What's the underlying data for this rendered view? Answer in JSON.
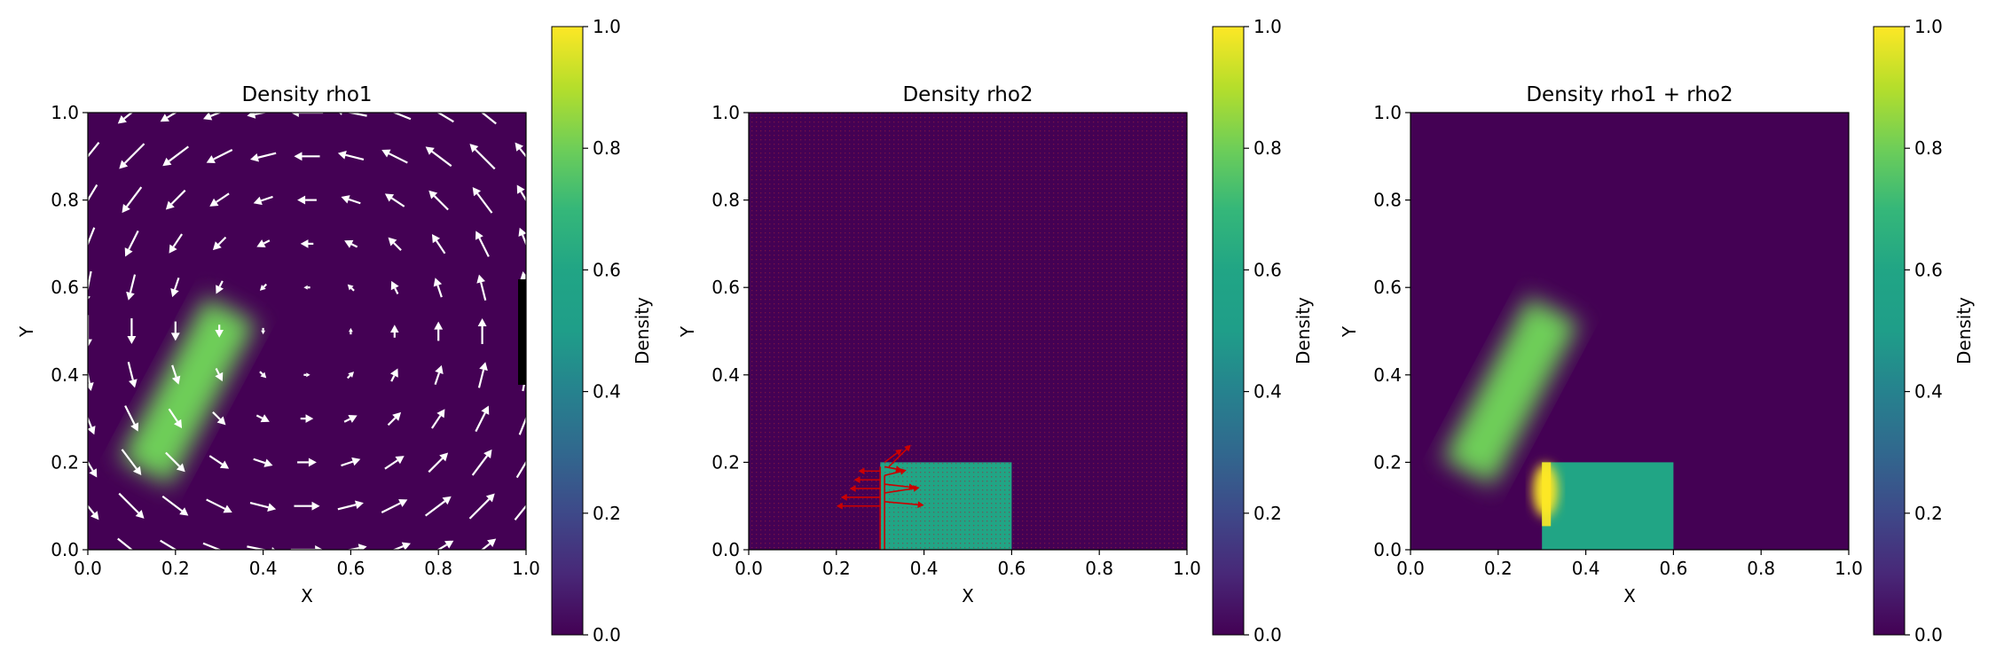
{
  "chart_data": [
    {
      "type": "heatmap",
      "title": "Density rho1",
      "xlabel": "X",
      "ylabel": "Y",
      "xlim": [
        0.0,
        1.0
      ],
      "ylim": [
        0.0,
        1.0
      ],
      "xticks": [
        "0.0",
        "0.2",
        "0.4",
        "0.6",
        "0.8",
        "1.0"
      ],
      "yticks": [
        "0.0",
        "0.2",
        "0.4",
        "0.6",
        "0.8",
        "1.0"
      ],
      "colorbar": {
        "label": "Density",
        "range": [
          0.0,
          1.0
        ],
        "ticks": [
          "0.0",
          "0.2",
          "0.4",
          "0.6",
          "0.8",
          "1.0"
        ],
        "colormap": "viridis"
      },
      "background_density": 0.0,
      "blobs": [
        {
          "shape": "tilted-rectangle",
          "density": 0.8,
          "center": [
            0.19,
            0.29
          ],
          "half_length": 0.21,
          "half_width": 0.065,
          "angle_deg": 62,
          "edge_blur": 0.035
        }
      ],
      "boundary_marker": {
        "x": 1.0,
        "y_range": [
          0.38,
          0.62
        ],
        "color": "#000000"
      },
      "vector_field": {
        "type": "vortex",
        "center": [
          0.5,
          0.5
        ],
        "rotation": "counter-clockwise",
        "color": "#ffffff",
        "grid": [
          0.0,
          0.1,
          0.2,
          0.3,
          0.4,
          0.5,
          0.6,
          0.7,
          0.8,
          0.9,
          1.0
        ]
      }
    },
    {
      "type": "heatmap",
      "title": "Density rho2",
      "xlabel": "X",
      "ylabel": "Y",
      "xlim": [
        0.0,
        1.0
      ],
      "ylim": [
        0.0,
        1.0
      ],
      "xticks": [
        "0.0",
        "0.2",
        "0.4",
        "0.6",
        "0.8",
        "1.0"
      ],
      "yticks": [
        "0.0",
        "0.2",
        "0.4",
        "0.6",
        "0.8",
        "1.0"
      ],
      "colorbar": {
        "label": "Density",
        "range": [
          0.0,
          1.0
        ],
        "ticks": [
          "0.0",
          "0.2",
          "0.4",
          "0.6",
          "0.8",
          "1.0"
        ],
        "colormap": "viridis"
      },
      "background_density": 0.0,
      "rectangles": [
        {
          "x_range": [
            0.3,
            0.6
          ],
          "y_range": [
            0.0,
            0.2
          ],
          "density": 0.6
        }
      ],
      "vector_field": {
        "type": "local-arrows",
        "color": "#cc0000",
        "region_x": [
          0.19,
          0.4
        ],
        "region_y": [
          0.0,
          0.24
        ]
      }
    },
    {
      "type": "heatmap",
      "title": "Density rho1 + rho2",
      "xlabel": "X",
      "ylabel": "Y",
      "xlim": [
        0.0,
        1.0
      ],
      "ylim": [
        0.0,
        1.0
      ],
      "xticks": [
        "0.0",
        "0.2",
        "0.4",
        "0.6",
        "0.8",
        "1.0"
      ],
      "yticks": [
        "0.0",
        "0.2",
        "0.4",
        "0.6",
        "0.8",
        "1.0"
      ],
      "colorbar": {
        "label": "Density",
        "range": [
          0.0,
          1.0
        ],
        "ticks": [
          "0.0",
          "0.2",
          "0.4",
          "0.6",
          "0.8",
          "1.0"
        ],
        "colormap": "viridis"
      },
      "background_density": 0.0,
      "blobs": [
        {
          "shape": "tilted-rectangle",
          "density": 0.8,
          "center": [
            0.19,
            0.29
          ],
          "half_length": 0.21,
          "half_width": 0.065,
          "angle_deg": 62,
          "edge_blur": 0.035
        }
      ],
      "rectangles": [
        {
          "x_range": [
            0.3,
            0.6
          ],
          "y_range": [
            0.0,
            0.2
          ],
          "density": 0.6
        }
      ],
      "overlap_peak": {
        "x_range": [
          0.3,
          0.34
        ],
        "y_range": [
          0.09,
          0.2
        ],
        "density": 1.0
      }
    }
  ]
}
